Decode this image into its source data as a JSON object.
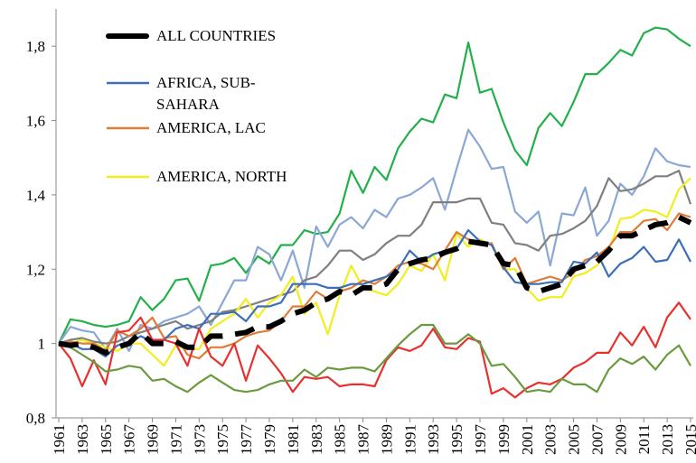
{
  "chart_data": {
    "type": "line",
    "x": [
      1961,
      1962,
      1963,
      1964,
      1965,
      1966,
      1967,
      1968,
      1969,
      1970,
      1971,
      1972,
      1973,
      1974,
      1975,
      1976,
      1977,
      1978,
      1979,
      1980,
      1981,
      1982,
      1983,
      1984,
      1985,
      1986,
      1987,
      1988,
      1989,
      1990,
      1991,
      1992,
      1993,
      1994,
      1995,
      1996,
      1997,
      1998,
      1999,
      2000,
      2001,
      2002,
      2003,
      2004,
      2005,
      2006,
      2007,
      2008,
      2009,
      2010,
      2011,
      2012,
      2013,
      2014,
      2015
    ],
    "xlim": [
      1961,
      2015
    ],
    "xticks": [
      1961,
      1963,
      1965,
      1967,
      1969,
      1971,
      1973,
      1975,
      1977,
      1979,
      1981,
      1983,
      1985,
      1987,
      1989,
      1991,
      1993,
      1995,
      1997,
      1999,
      2001,
      2003,
      2005,
      2007,
      2009,
      2011,
      2013,
      2015
    ],
    "ylim": [
      0.8,
      1.9
    ],
    "yticks": [
      {
        "value": 0.8,
        "label": "0,8"
      },
      1,
      {
        "value": 1.2,
        "label": "1,2"
      },
      {
        "value": 1.4,
        "label": "1,4"
      },
      {
        "value": 1.6,
        "label": "1,6"
      },
      {
        "value": 1.8,
        "label": "1,8"
      }
    ],
    "legend": "upper left",
    "series": [
      {
        "color": "#22b04a",
        "values": [
          1.0,
          1.065,
          1.06,
          1.05,
          1.045,
          1.05,
          1.06,
          1.125,
          1.09,
          1.12,
          1.17,
          1.175,
          1.115,
          1.21,
          1.215,
          1.23,
          1.19,
          1.235,
          1.215,
          1.265,
          1.265,
          1.305,
          1.295,
          1.3,
          1.35,
          1.465,
          1.405,
          1.475,
          1.44,
          1.525,
          1.57,
          1.605,
          1.595,
          1.67,
          1.66,
          1.81,
          1.675,
          1.685,
          1.595,
          1.52,
          1.48,
          1.58,
          1.62,
          1.585,
          1.65,
          1.725,
          1.725,
          1.755,
          1.79,
          1.775,
          1.835,
          1.85,
          1.845,
          1.82,
          1.8
        ]
      },
      {
        "color": "#8aa7d6",
        "values": [
          1.0,
          1.045,
          1.035,
          1.03,
          0.985,
          1.04,
          0.98,
          1.05,
          1.04,
          1.06,
          1.07,
          1.08,
          1.1,
          1.05,
          1.11,
          1.17,
          1.17,
          1.26,
          1.24,
          1.17,
          1.25,
          1.15,
          1.315,
          1.26,
          1.32,
          1.34,
          1.31,
          1.36,
          1.34,
          1.39,
          1.4,
          1.42,
          1.445,
          1.36,
          1.47,
          1.575,
          1.53,
          1.47,
          1.475,
          1.355,
          1.325,
          1.355,
          1.21,
          1.35,
          1.345,
          1.42,
          1.29,
          1.33,
          1.43,
          1.4,
          1.45,
          1.525,
          1.49,
          1.48,
          1.475
        ]
      },
      {
        "color": "#7f7f7f",
        "values": [
          1.0,
          1.01,
          1.015,
          1.005,
          1.0,
          1.005,
          1.02,
          1.03,
          1.04,
          1.05,
          1.06,
          1.04,
          1.05,
          1.06,
          1.085,
          1.09,
          1.1,
          1.11,
          1.12,
          1.13,
          1.14,
          1.17,
          1.18,
          1.21,
          1.25,
          1.25,
          1.225,
          1.24,
          1.27,
          1.29,
          1.29,
          1.32,
          1.38,
          1.38,
          1.38,
          1.39,
          1.39,
          1.325,
          1.32,
          1.27,
          1.265,
          1.25,
          1.29,
          1.295,
          1.31,
          1.33,
          1.37,
          1.445,
          1.41,
          1.415,
          1.43,
          1.45,
          1.45,
          1.465,
          1.375
        ]
      },
      {
        "name": "AMERICA, NORTH",
        "color": "#f2ee1c",
        "values": [
          1.0,
          1.0,
          1.01,
          1.0,
          0.99,
          0.98,
          1.0,
          1.0,
          0.97,
          0.94,
          0.995,
          0.985,
          0.985,
          1.04,
          1.06,
          1.08,
          1.12,
          1.07,
          1.11,
          1.13,
          1.18,
          1.08,
          1.11,
          1.025,
          1.13,
          1.21,
          1.15,
          1.14,
          1.13,
          1.16,
          1.21,
          1.195,
          1.24,
          1.17,
          1.295,
          1.26,
          1.28,
          1.265,
          1.2,
          1.2,
          1.15,
          1.115,
          1.125,
          1.125,
          1.18,
          1.19,
          1.21,
          1.25,
          1.335,
          1.34,
          1.36,
          1.355,
          1.34,
          1.415,
          1.445
        ]
      },
      {
        "name": "AMERICA, LAC",
        "color": "#e07b39",
        "values": [
          1.0,
          1.005,
          1.0,
          1.0,
          0.98,
          1.035,
          1.02,
          1.04,
          1.07,
          1.015,
          1.02,
          0.97,
          0.96,
          0.99,
          0.99,
          1.0,
          1.02,
          1.03,
          1.035,
          1.06,
          1.1,
          1.1,
          1.14,
          1.12,
          1.14,
          1.15,
          1.17,
          1.16,
          1.18,
          1.21,
          1.22,
          1.215,
          1.2,
          1.25,
          1.3,
          1.28,
          1.265,
          1.27,
          1.2,
          1.23,
          1.16,
          1.17,
          1.18,
          1.17,
          1.19,
          1.225,
          1.235,
          1.26,
          1.3,
          1.3,
          1.33,
          1.335,
          1.305,
          1.35,
          1.34
        ]
      },
      {
        "name": "AFRICA, SUB-SAHARA",
        "color": "#3c6fb5",
        "values": [
          1.0,
          1.0,
          0.985,
          0.985,
          0.965,
          0.995,
          1.0,
          1.02,
          1.005,
          1.01,
          1.04,
          1.05,
          1.04,
          1.08,
          1.08,
          1.085,
          1.06,
          1.1,
          1.1,
          1.11,
          1.16,
          1.16,
          1.16,
          1.15,
          1.15,
          1.16,
          1.16,
          1.17,
          1.18,
          1.2,
          1.25,
          1.22,
          1.24,
          1.25,
          1.255,
          1.305,
          1.275,
          1.265,
          1.205,
          1.165,
          1.16,
          1.16,
          1.165,
          1.165,
          1.22,
          1.215,
          1.245,
          1.18,
          1.215,
          1.23,
          1.26,
          1.22,
          1.225,
          1.28,
          1.22
        ]
      },
      {
        "color": "#e8302e",
        "values": [
          1.0,
          0.96,
          0.885,
          0.955,
          0.89,
          1.03,
          1.035,
          1.07,
          1.01,
          1.01,
          1.0,
          0.94,
          1.04,
          0.965,
          0.94,
          1.0,
          0.9,
          0.995,
          0.96,
          0.92,
          0.87,
          0.91,
          0.905,
          0.91,
          0.885,
          0.89,
          0.89,
          0.885,
          0.955,
          0.99,
          0.98,
          0.995,
          1.04,
          0.99,
          0.985,
          1.015,
          1.005,
          0.865,
          0.88,
          0.855,
          0.88,
          0.895,
          0.89,
          0.905,
          0.935,
          0.95,
          0.975,
          0.975,
          1.03,
          0.995,
          1.045,
          0.99,
          1.07,
          1.11,
          1.065
        ]
      },
      {
        "color": "#6a9a3e",
        "values": [
          1.0,
          0.99,
          0.97,
          0.95,
          0.925,
          0.93,
          0.94,
          0.935,
          0.9,
          0.905,
          0.885,
          0.87,
          0.895,
          0.915,
          0.895,
          0.875,
          0.87,
          0.875,
          0.89,
          0.9,
          0.9,
          0.93,
          0.91,
          0.935,
          0.93,
          0.935,
          0.935,
          0.925,
          0.96,
          0.995,
          1.025,
          1.05,
          1.05,
          1.0,
          1.0,
          1.025,
          1.0,
          0.94,
          0.945,
          0.91,
          0.87,
          0.875,
          0.87,
          0.905,
          0.89,
          0.89,
          0.87,
          0.93,
          0.96,
          0.945,
          0.965,
          0.93,
          0.97,
          0.995,
          0.94
        ]
      },
      {
        "name": "ALL COUNTRIES",
        "color": "#000000",
        "line_style": "dashed",
        "values": [
          1.0,
          0.995,
          1.0,
          0.99,
          0.975,
          0.99,
          1.0,
          1.03,
          1.0,
          1.0,
          1.005,
          0.99,
          0.99,
          1.02,
          1.02,
          1.025,
          1.03,
          1.045,
          1.045,
          1.06,
          1.08,
          1.09,
          1.11,
          1.12,
          1.14,
          1.13,
          1.15,
          1.15,
          1.16,
          1.2,
          1.215,
          1.225,
          1.23,
          1.245,
          1.255,
          1.275,
          1.27,
          1.265,
          1.215,
          1.21,
          1.15,
          1.14,
          1.15,
          1.16,
          1.2,
          1.21,
          1.22,
          1.25,
          1.29,
          1.29,
          1.305,
          1.32,
          1.325,
          1.34,
          1.325
        ]
      }
    ]
  }
}
